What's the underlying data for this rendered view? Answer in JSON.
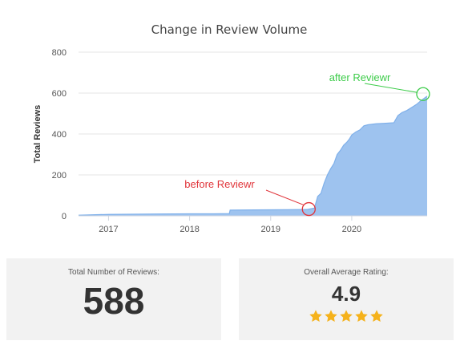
{
  "chart_data": {
    "type": "area",
    "title": "Change in Review Volume",
    "ylabel": "Total Reviews",
    "xlabel": "",
    "ylim": [
      0,
      800
    ],
    "xlim": [
      2016.63,
      2020.93
    ],
    "y_ticks": [
      "0",
      "200",
      "400",
      "600",
      "800"
    ],
    "x_ticks": [
      {
        "value": 2017,
        "label": "2017"
      },
      {
        "value": 2018,
        "label": "2018"
      },
      {
        "value": 2019,
        "label": "2019"
      },
      {
        "value": 2020,
        "label": "2020"
      }
    ],
    "grid": true,
    "fill_color": "#9ec3ef",
    "line_color": "#7fb0ea",
    "points": [
      [
        2016.63,
        3
      ],
      [
        2016.8,
        5
      ],
      [
        2017.0,
        7
      ],
      [
        2017.3,
        8
      ],
      [
        2017.6,
        9
      ],
      [
        2018.0,
        10
      ],
      [
        2018.3,
        10
      ],
      [
        2018.49,
        11
      ],
      [
        2018.5,
        28
      ],
      [
        2018.8,
        29
      ],
      [
        2019.2,
        30
      ],
      [
        2019.45,
        31
      ],
      [
        2019.54,
        38
      ],
      [
        2019.58,
        95
      ],
      [
        2019.62,
        110
      ],
      [
        2019.66,
        160
      ],
      [
        2019.7,
        200
      ],
      [
        2019.74,
        230
      ],
      [
        2019.78,
        255
      ],
      [
        2019.82,
        300
      ],
      [
        2019.86,
        320
      ],
      [
        2019.9,
        345
      ],
      [
        2019.94,
        360
      ],
      [
        2019.97,
        375
      ],
      [
        2020.0,
        395
      ],
      [
        2020.05,
        410
      ],
      [
        2020.1,
        420
      ],
      [
        2020.15,
        440
      ],
      [
        2020.2,
        445
      ],
      [
        2020.3,
        450
      ],
      [
        2020.4,
        452
      ],
      [
        2020.52,
        455
      ],
      [
        2020.57,
        490
      ],
      [
        2020.62,
        505
      ],
      [
        2020.68,
        515
      ],
      [
        2020.74,
        530
      ],
      [
        2020.8,
        545
      ],
      [
        2020.86,
        565
      ],
      [
        2020.93,
        585
      ]
    ],
    "annotations": [
      {
        "label": "before Reviewr",
        "x": 2019.47,
        "y": 33,
        "color": "#e0353b"
      },
      {
        "label": "after Reviewr",
        "x": 2020.88,
        "y": 595,
        "color": "#3dcc4a"
      }
    ]
  },
  "cards": {
    "total_label": "Total Number of Reviews:",
    "total_value": "588",
    "rating_label": "Overall Average Rating:",
    "rating_value": "4.9",
    "rating_stars": 4.9,
    "star_color": "#f5b21b"
  }
}
